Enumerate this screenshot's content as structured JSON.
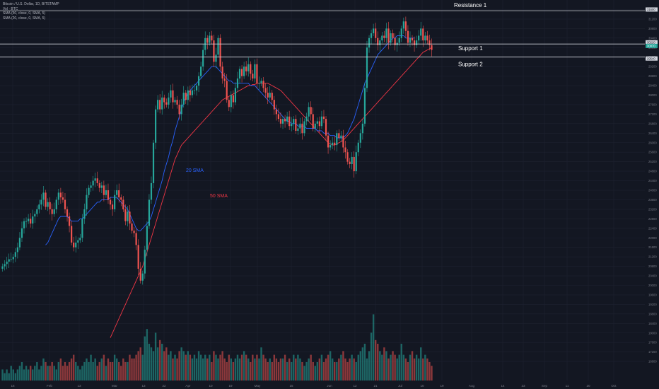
{
  "header": {
    "title": "Bitcoin / U.S. Dollar, 1D, BITSTAMP",
    "vol": "Vol · BTC",
    "sma50": "SMA (50, close, 0, SMA, 5)",
    "sma20": "SMA (20, close, 0, SMA, 5)"
  },
  "colors": {
    "background": "#131722",
    "up": "#26a69a",
    "down": "#ef5350",
    "sma20": "#2962ff",
    "sma50": "#f23645",
    "hline": "#d1d4dc"
  },
  "chart_data": {
    "type": "candlestick",
    "ylim": [
      16000,
      32000
    ],
    "price_axis_ticks": [
      "31600",
      "31200",
      "30800",
      "30400",
      "30000",
      "29600",
      "29200",
      "28800",
      "28400",
      "28000",
      "27600",
      "27200",
      "26800",
      "26400",
      "26000",
      "25600",
      "25200",
      "24800",
      "24400",
      "24000",
      "23600",
      "23200",
      "22800",
      "22400",
      "22000",
      "21600",
      "21200",
      "20800",
      "20400",
      "20000",
      "19600",
      "19200",
      "18800",
      "18400",
      "18000",
      "17600",
      "17200",
      "16800"
    ],
    "time_axis_ticks": [
      "16",
      "Feb",
      "13",
      "Mar",
      "13",
      "22",
      "Apr",
      "10",
      "19",
      "May",
      "15",
      "Jun",
      "12",
      "21",
      "Jul",
      "10",
      "19",
      "Aug",
      "14",
      "23",
      "Sep",
      "11",
      "20",
      "Oct"
    ],
    "annotations": {
      "resistance1": {
        "label": "Resistance 1",
        "price": 31550
      },
      "support1": {
        "label": "Support 1",
        "price": 30150
      },
      "support2": {
        "label": "Support 2",
        "price": 29600
      },
      "sma20_label": "20 SMA",
      "sma50_label": "50 SMA"
    },
    "price_markers": [
      "31600",
      "30220",
      "30070",
      "29540"
    ],
    "close_series": [
      20800,
      20900,
      21000,
      21100,
      21100,
      21200,
      21400,
      21600,
      22000,
      22400,
      22700,
      22700,
      22800,
      22600,
      22900,
      23000,
      23200,
      23400,
      23600,
      23900,
      23300,
      23500,
      23200,
      23000,
      23200,
      23600,
      23900,
      23700,
      23600,
      23200,
      22900,
      22500,
      21800,
      21600,
      21800,
      21900,
      22000,
      22800,
      23200,
      23800,
      24100,
      24200,
      24400,
      24500,
      24300,
      24100,
      24200,
      23800,
      24000,
      23600,
      23400,
      23200,
      23800,
      24000,
      23700,
      23600,
      23200,
      22700,
      23100,
      22600,
      22300,
      22200,
      21700,
      20700,
      20200,
      20500,
      21500,
      22500,
      23600,
      24300,
      26000,
      27400,
      27800,
      27400,
      27900,
      27700,
      27600,
      27900,
      28200,
      27700,
      27800,
      27600,
      27200,
      27600,
      28100,
      27800,
      28200,
      28000,
      28200,
      28200,
      28400,
      28800,
      29200,
      29900,
      30400,
      30200,
      30500,
      30300,
      29400,
      29700,
      30400,
      29200,
      28700,
      28600,
      27800,
      27500,
      28000,
      27700,
      28300,
      28700,
      29100,
      28800,
      29200,
      29000,
      29300,
      28900,
      28700,
      29300,
      28500,
      28500,
      28600,
      28300,
      28100,
      27900,
      28100,
      27800,
      27400,
      27200,
      27000,
      26800,
      27000,
      26900,
      27100,
      26700,
      26800,
      27000,
      26500,
      26600,
      26800,
      26400,
      26900,
      27100,
      27500,
      27200,
      26600,
      26800,
      26900,
      26700,
      27100,
      27000,
      26300,
      25800,
      25900,
      26000,
      25900,
      26400,
      26200,
      26300,
      25800,
      25600,
      25200,
      25100,
      25400,
      24800,
      25600,
      26000,
      26400,
      26800,
      28300,
      30000,
      30400,
      30600,
      30800,
      30400,
      30100,
      30300,
      30500,
      30400,
      30800,
      30200,
      30600,
      30400,
      30100,
      30200,
      30400,
      30800,
      31100,
      30700,
      30200,
      30400,
      30300,
      30100,
      30300,
      30500,
      30800,
      30300,
      30500,
      30300,
      30100,
      29900
    ],
    "sma20_series": [
      null,
      null,
      null,
      null,
      null,
      null,
      null,
      null,
      null,
      null,
      null,
      null,
      null,
      null,
      null,
      null,
      null,
      null,
      null,
      null,
      21700,
      21800,
      22000,
      22200,
      22400,
      22600,
      22800,
      22900,
      22900,
      22900,
      22900,
      22800,
      22700,
      22700,
      22700,
      22700,
      22800,
      22800,
      22900,
      23000,
      23100,
      23200,
      23300,
      23400,
      23500,
      23500,
      23600,
      23600,
      23600,
      23600,
      23700,
      23700,
      23700,
      23700,
      23600,
      23500,
      23400,
      23300,
      23200,
      23000,
      22800,
      22600,
      22400,
      22300,
      22300,
      22400,
      22500,
      22600,
      22700,
      22900,
      23200,
      23500,
      23800,
      24100,
      24400,
      24800,
      25100,
      25400,
      25800,
      26100,
      26500,
      26800,
      27100,
      27400,
      27700,
      27900,
      28100,
      28200,
      28300,
      28400,
      28500,
      28600,
      28700,
      28800,
      28900,
      29000,
      29100,
      29200,
      29200,
      29200,
      29100,
      29000,
      28900,
      28800,
      28700,
      28600,
      28600,
      28500,
      28500,
      28500,
      28500,
      28500,
      28500,
      28500,
      28500,
      28400,
      28400,
      28400,
      28300,
      28200,
      28100,
      28000,
      27900,
      27800,
      27700,
      27600,
      27500,
      27400,
      27300,
      27200,
      27100,
      27000,
      26900,
      26900,
      26800,
      26800,
      26800,
      26700,
      26700,
      26700,
      26700,
      26600,
      26600,
      26600,
      26600,
      26600,
      26500,
      26500,
      26500,
      26400,
      26400,
      26400,
      26300,
      26300,
      26300,
      26200,
      26200,
      26200,
      26200,
      26300,
      26400,
      26600,
      26800,
      27000,
      27300,
      27600,
      27900,
      28200,
      28500,
      28700,
      28900,
      29100,
      29300,
      29500,
      29700,
      29800,
      29900,
      30000,
      30100,
      30200,
      30300,
      30400,
      30400,
      30500,
      30500,
      30500,
      30500,
      30400,
      30400,
      30400,
      30400,
      30400
    ],
    "sma50_series": [
      null,
      null,
      null,
      null,
      null,
      null,
      null,
      null,
      null,
      null,
      null,
      null,
      null,
      null,
      null,
      null,
      null,
      null,
      null,
      null,
      null,
      null,
      null,
      null,
      null,
      null,
      null,
      null,
      null,
      null,
      null,
      null,
      null,
      null,
      null,
      null,
      null,
      null,
      null,
      null,
      null,
      null,
      null,
      null,
      null,
      null,
      null,
      null,
      null,
      null,
      17800,
      18000,
      18200,
      18400,
      18600,
      18800,
      19000,
      19200,
      19400,
      19600,
      19800,
      20000,
      20200,
      20400,
      20600,
      20800,
      21100,
      21400,
      21700,
      22000,
      22300,
      22600,
      22900,
      23200,
      23500,
      23800,
      24100,
      24400,
      24700,
      25000,
      25300,
      25500,
      25700,
      25900,
      26000,
      26100,
      26200,
      26300,
      26400,
      26500,
      26600,
      26700,
      26800,
      26900,
      27000,
      27100,
      27200,
      27300,
      27400,
      27500,
      27600,
      27700,
      27800,
      27850,
      27900,
      27950,
      28000,
      28050,
      28100,
      28150,
      28200,
      28250,
      28300,
      28350,
      28400,
      28400,
      28450,
      28450,
      28500,
      28500,
      28500,
      28500,
      28500,
      28500,
      28450,
      28400,
      28350,
      28300,
      28250,
      28200,
      28100,
      28000,
      27900,
      27800,
      27700,
      27600,
      27500,
      27400,
      27300,
      27200,
      27100,
      27000,
      26900,
      26800,
      26700,
      26600,
      26500,
      26400,
      26300,
      26200,
      26100,
      26000,
      25950,
      25900,
      25900,
      25950,
      26000,
      26050,
      26100,
      26200,
      26300,
      26400,
      26500,
      26600,
      26700,
      26800,
      26900,
      27000,
      27100,
      27200,
      27300,
      27400,
      27500,
      27600,
      27700,
      27800,
      27900,
      28000,
      28100,
      28200,
      28300,
      28400,
      28500,
      28600,
      28700,
      28800,
      28900,
      29000,
      29100,
      29200,
      29300,
      29400,
      29500,
      29600,
      29700,
      29800,
      29850,
      29900,
      29950,
      30000,
      30050,
      30100,
      30150,
      30200,
      30250,
      30300
    ],
    "volume_series": [
      3,
      2,
      3,
      2,
      4,
      3,
      2,
      3,
      4,
      5,
      3,
      4,
      3,
      4,
      3,
      4,
      5,
      3,
      4,
      6,
      5,
      4,
      4,
      5,
      4,
      3,
      5,
      6,
      4,
      5,
      4,
      5,
      6,
      7,
      5,
      4,
      3,
      4,
      5,
      6,
      5,
      7,
      5,
      6,
      4,
      5,
      6,
      7,
      4,
      6,
      5,
      5,
      7,
      6,
      5,
      4,
      6,
      5,
      5,
      7,
      6,
      6,
      7,
      8,
      9,
      7,
      12,
      14,
      10,
      9,
      8,
      13,
      9,
      11,
      10,
      8,
      9,
      7,
      8,
      6,
      7,
      6,
      8,
      9,
      8,
      7,
      8,
      7,
      6,
      7,
      6,
      8,
      7,
      6,
      7,
      6,
      7,
      5,
      8,
      7,
      6,
      7,
      8,
      6,
      5,
      7,
      6,
      5,
      6,
      7,
      6,
      7,
      8,
      7,
      6,
      5,
      7,
      6,
      7,
      6,
      9,
      7,
      6,
      5,
      6,
      5,
      7,
      6,
      5,
      6,
      6,
      7,
      5,
      6,
      5,
      7,
      6,
      7,
      6,
      5,
      4,
      5,
      6,
      7,
      5,
      4,
      5,
      6,
      7,
      5,
      6,
      7,
      8,
      6,
      5,
      5,
      6,
      7,
      8,
      6,
      5,
      6,
      7,
      6,
      5,
      7,
      8,
      9,
      10,
      6,
      8,
      13,
      18,
      11,
      10,
      8,
      7,
      9,
      8,
      6,
      7,
      8,
      7,
      6,
      7,
      10,
      7,
      6,
      5,
      7,
      8,
      6,
      7,
      6,
      9,
      6,
      7,
      6,
      5,
      4,
      5,
      4
    ]
  }
}
